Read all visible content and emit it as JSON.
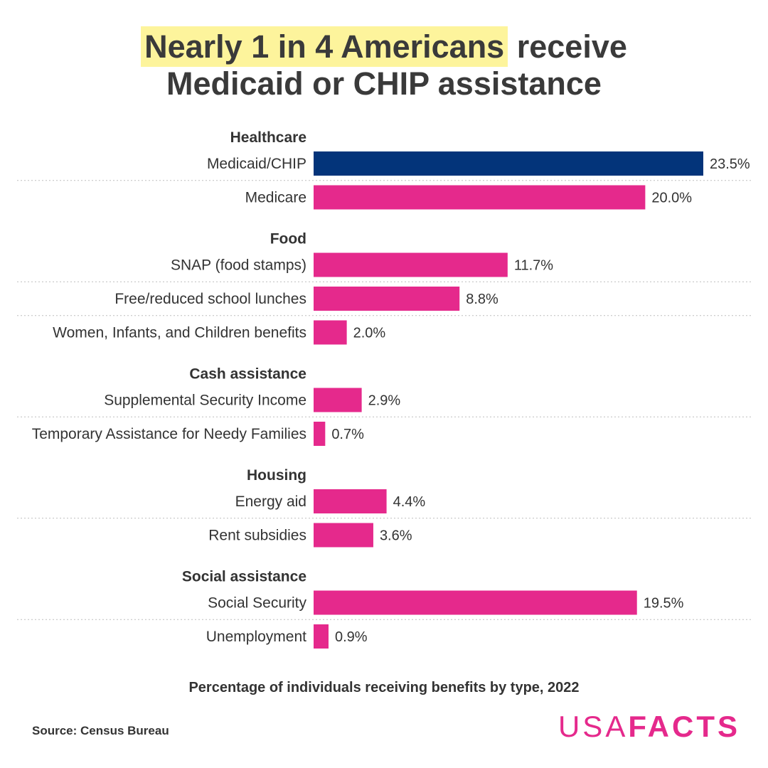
{
  "chart_data": {
    "type": "bar",
    "title": {
      "highlight": "Nearly 1 in 4 Americans",
      "line1_rest": "receive",
      "line2": "Medicaid or CHIP assistance"
    },
    "caption": "Percentage of individuals receiving benefits by type, 2022",
    "xlim": [
      0,
      23.5
    ],
    "groups": [
      {
        "name": "Healthcare",
        "items": [
          {
            "label": "Medicaid/CHIP",
            "value": 23.5,
            "value_label": "23.5%",
            "highlight": true
          },
          {
            "label": "Medicare",
            "value": 20.0,
            "value_label": "20.0%",
            "highlight": false
          }
        ]
      },
      {
        "name": "Food",
        "items": [
          {
            "label": "SNAP (food stamps)",
            "value": 11.7,
            "value_label": "11.7%",
            "highlight": false
          },
          {
            "label": "Free/reduced school lunches",
            "value": 8.8,
            "value_label": "8.8%",
            "highlight": false
          },
          {
            "label": "Women, Infants, and Children benefits",
            "value": 2.0,
            "value_label": "2.0%",
            "highlight": false
          }
        ]
      },
      {
        "name": "Cash assistance",
        "items": [
          {
            "label": "Supplemental Security Income",
            "value": 2.9,
            "value_label": "2.9%",
            "highlight": false
          },
          {
            "label": "Temporary Assistance for Needy Families",
            "value": 0.7,
            "value_label": "0.7%",
            "highlight": false
          }
        ]
      },
      {
        "name": "Housing",
        "items": [
          {
            "label": "Energy aid",
            "value": 4.4,
            "value_label": "4.4%",
            "highlight": false
          },
          {
            "label": "Rent subsidies",
            "value": 3.6,
            "value_label": "3.6%",
            "highlight": false
          }
        ]
      },
      {
        "name": "Social assistance",
        "items": [
          {
            "label": "Social Security",
            "value": 19.5,
            "value_label": "19.5%",
            "highlight": false
          },
          {
            "label": "Unemployment",
            "value": 0.9,
            "value_label": "0.9%",
            "highlight": false
          }
        ]
      }
    ]
  },
  "source": "Source: Census Bureau",
  "logo": {
    "light": "USA",
    "bold": "FACTS"
  },
  "colors": {
    "highlight_bar": "#03347a",
    "bar": "#e5298c",
    "title_highlight": "#fdf49c",
    "logo": "#e5298c",
    "text": "#333333"
  }
}
